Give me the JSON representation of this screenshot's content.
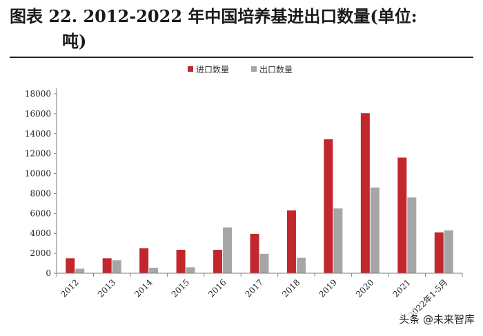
{
  "title": {
    "line1": "图表 22. 2012-2022 年中国培养基进出口数量(单位:",
    "line2": "吨)"
  },
  "watermark": "头条 @未来智库",
  "colors": {
    "import": "#c1272d",
    "export": "#a6a6a6",
    "axis": "#7f7f7f"
  },
  "chart_data": {
    "type": "bar",
    "categories": [
      "2012",
      "2013",
      "2014",
      "2015",
      "2016",
      "2017",
      "2018",
      "2019",
      "2020",
      "2021",
      "2022年1-5月"
    ],
    "series": [
      {
        "name": "进口数量",
        "values": [
          1500,
          1500,
          2500,
          2350,
          2350,
          3950,
          6300,
          13450,
          16050,
          11600,
          4100
        ]
      },
      {
        "name": "出口数量",
        "values": [
          450,
          1300,
          550,
          600,
          4600,
          1950,
          1550,
          6500,
          8600,
          7600,
          4300
        ]
      }
    ],
    "ylim": [
      0,
      18000
    ],
    "yticks": [
      0,
      2000,
      4000,
      6000,
      8000,
      10000,
      12000,
      14000,
      16000,
      18000
    ],
    "legend": "top-center",
    "grid": false
  }
}
